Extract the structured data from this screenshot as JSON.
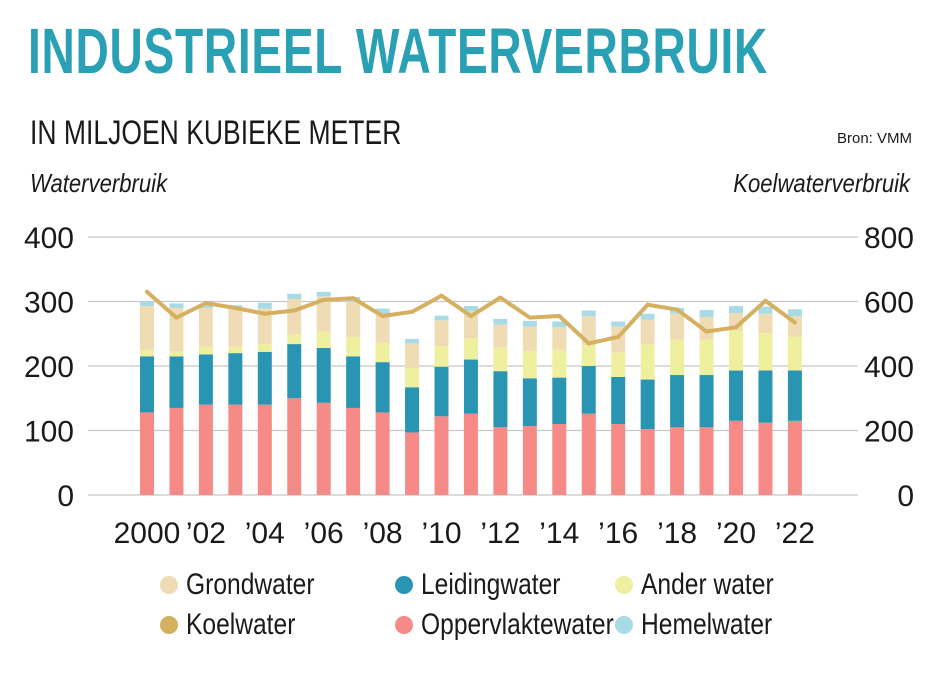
{
  "header": {
    "title": "INDUSTRIEEL WATERVERBRUIK",
    "subtitle": "IN MILJOEN KUBIEKE METER",
    "source": "Bron: VMM",
    "left_axis_title": "Waterverbruik",
    "right_axis_title": "Koelwaterverbruik"
  },
  "colors": {
    "title": "#2aa0b5",
    "grondwater": "#f0dcb4",
    "leidingwater": "#2a95b2",
    "ander_water": "#eef0a0",
    "koelwater": "#d4b060",
    "oppervlaktewater": "#f58a87",
    "hemelwater": "#a8dbe6",
    "grid": "#c8c8c8"
  },
  "legend": [
    {
      "key": "grondwater",
      "label": "Grondwater"
    },
    {
      "key": "leidingwater",
      "label": "Leidingwater"
    },
    {
      "key": "ander_water",
      "label": "Ander water"
    },
    {
      "key": "koelwater",
      "label": "Koelwater"
    },
    {
      "key": "oppervlaktewater",
      "label": "Oppervlaktewater"
    },
    {
      "key": "hemelwater",
      "label": "Hemelwater"
    }
  ],
  "chart_data": {
    "type": "bar",
    "stacked": true,
    "x": [
      "2000",
      "2001",
      "2002",
      "2003",
      "2004",
      "2005",
      "2006",
      "2007",
      "2008",
      "2009",
      "2010",
      "2011",
      "2012",
      "2013",
      "2014",
      "2015",
      "2016",
      "2017",
      "2018",
      "2019",
      "2020",
      "2021",
      "2022"
    ],
    "x_tick_labels": {
      "2000": "2000",
      "2002": "’02",
      "2004": "’04",
      "2006": "’06",
      "2008": "’08",
      "2010": "’10",
      "2012": "’12",
      "2014": "’14",
      "2016": "’16",
      "2018": "’18",
      "2020": "’20",
      "2022": "’22"
    },
    "left_axis": {
      "range": [
        0,
        400
      ],
      "ticks": [
        0,
        100,
        200,
        300,
        400
      ],
      "label": "Waterverbruik"
    },
    "right_axis": {
      "range": [
        0,
        800
      ],
      "ticks": [
        0,
        200,
        400,
        600,
        800
      ],
      "label": "Koelwaterverbruik"
    },
    "grid": true,
    "legend_position": "bottom",
    "series": [
      {
        "name": "Oppervlaktewater",
        "key": "oppervlaktewater",
        "axis": "left",
        "values": [
          128,
          135,
          140,
          140,
          140,
          150,
          143,
          135,
          128,
          97,
          122,
          126,
          105,
          107,
          110,
          126,
          110,
          102,
          105,
          105,
          115,
          112,
          115
        ]
      },
      {
        "name": "Leidingwater",
        "key": "leidingwater",
        "axis": "left",
        "values": [
          87,
          80,
          78,
          80,
          82,
          84,
          85,
          80,
          78,
          70,
          77,
          84,
          87,
          74,
          72,
          74,
          73,
          77,
          81,
          81,
          78,
          81,
          78
        ]
      },
      {
        "name": "Ander water",
        "key": "ander_water",
        "axis": "left",
        "values": [
          10,
          8,
          12,
          10,
          12,
          15,
          25,
          30,
          30,
          30,
          32,
          33,
          37,
          42,
          43,
          32,
          38,
          55,
          55,
          55,
          62,
          58,
          52
        ]
      },
      {
        "name": "Grondwater",
        "key": "grondwater",
        "axis": "left",
        "values": [
          68,
          67,
          60,
          58,
          55,
          55,
          55,
          55,
          45,
          38,
          40,
          42,
          35,
          38,
          35,
          45,
          40,
          38,
          40,
          35,
          27,
          30,
          32
        ]
      },
      {
        "name": "Hemelwater",
        "key": "hemelwater",
        "axis": "left",
        "values": [
          7,
          7,
          6,
          6,
          9,
          8,
          7,
          7,
          8,
          7,
          7,
          8,
          9,
          9,
          9,
          9,
          8,
          9,
          9,
          11,
          11,
          11,
          11
        ]
      },
      {
        "name": "Koelwater",
        "key": "koelwater",
        "axis": "right",
        "type": "line",
        "values": [
          630,
          550,
          595,
          580,
          562,
          572,
          605,
          610,
          555,
          568,
          618,
          555,
          612,
          550,
          555,
          470,
          490,
          590,
          575,
          507,
          520,
          602,
          535
        ]
      }
    ]
  }
}
